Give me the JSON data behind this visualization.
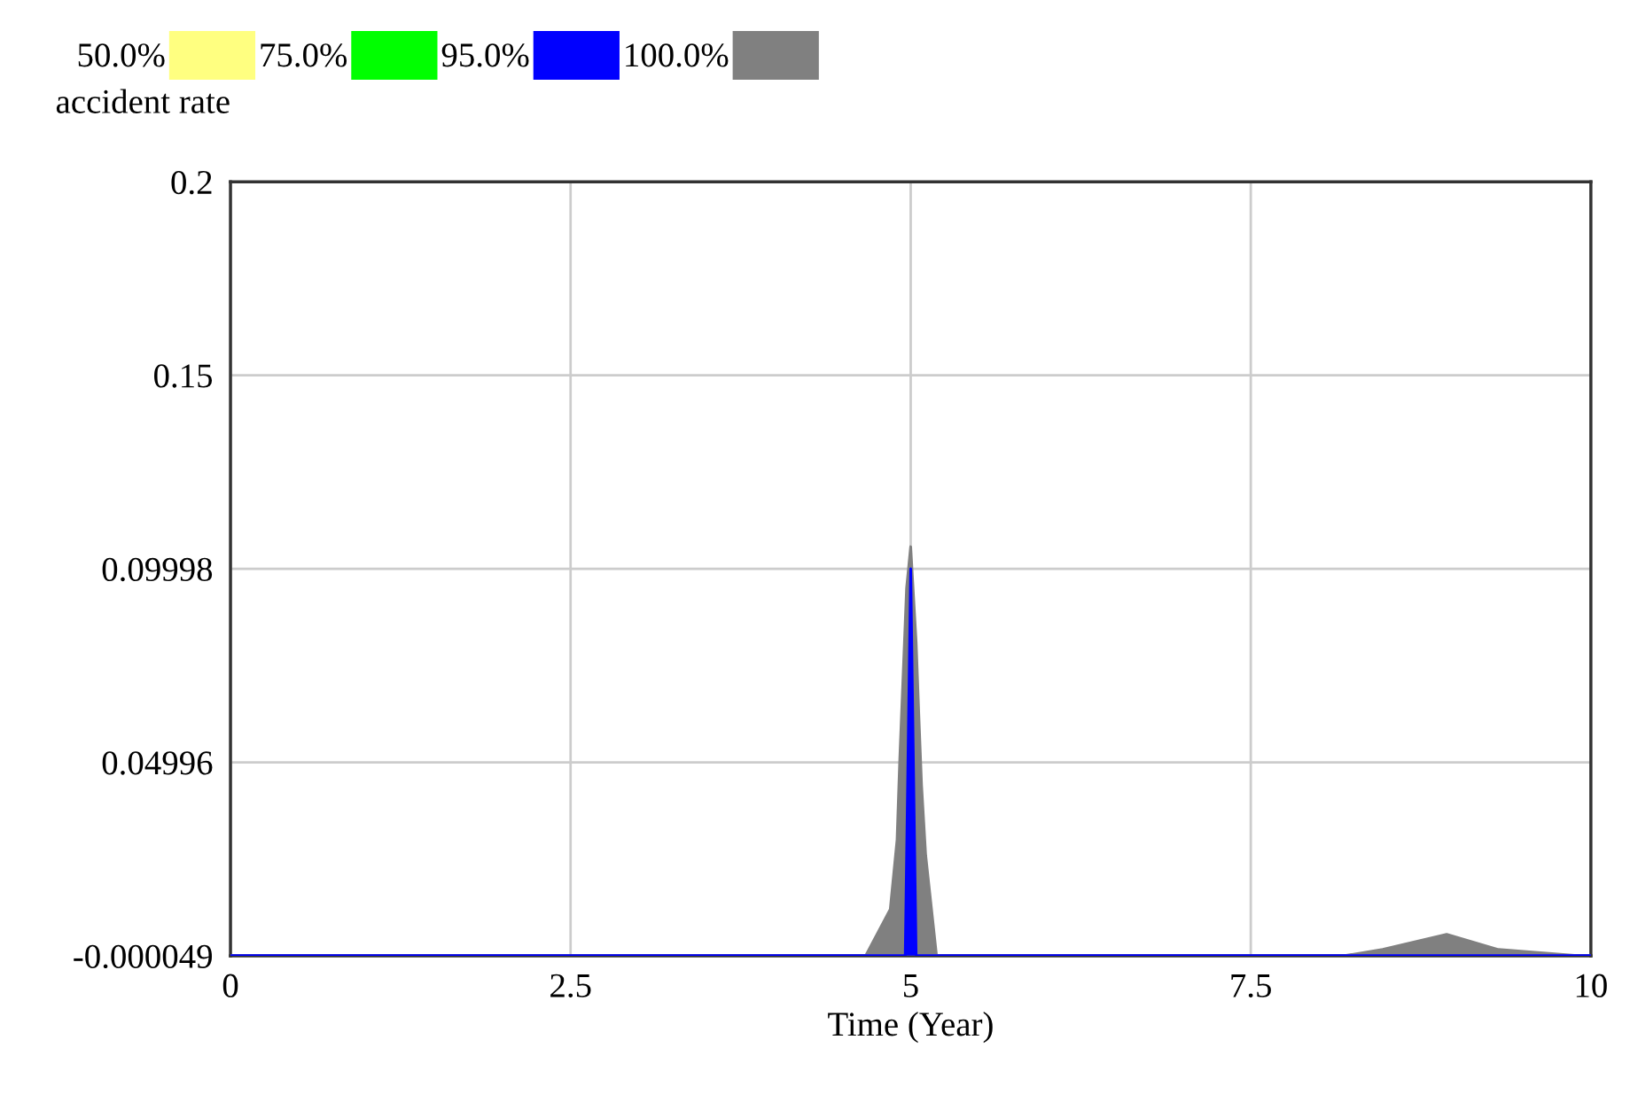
{
  "chart_data": {
    "type": "area",
    "xlabel": "Time (Year)",
    "ylabel": "accident rate",
    "xlim": [
      0,
      10
    ],
    "xticks": [
      0,
      2.5,
      5,
      7.5,
      10
    ],
    "ylim": [
      -4.9e-05,
      0.2
    ],
    "yticks": [
      {
        "value": -4.9e-05,
        "label": "-0.000049"
      },
      0.04996,
      0.09998,
      0.15,
      0.2
    ],
    "grid": true,
    "legend": "top left",
    "series": [
      {
        "name": "100.0%",
        "color": "#808080",
        "x": [
          0,
          4.38,
          4.67,
          4.85,
          4.9,
          4.92,
          4.97,
          5.0,
          5.04,
          5.06,
          5.08,
          5.11,
          5.19,
          8.19,
          8.47,
          8.94,
          9.32,
          9.9,
          10
        ],
        "values": [
          0,
          0,
          0,
          0.012,
          0.03,
          0.0508,
          0.095,
          0.1057,
          0.081,
          0.062,
          0.044,
          0.026,
          0,
          0,
          0.0016,
          0.0055,
          0.0016,
          0,
          0
        ]
      },
      {
        "name": "95.0%",
        "color": "#0000ff",
        "x": [
          0,
          4.96,
          5.0,
          5.04,
          10
        ],
        "values": [
          0,
          0,
          0.1,
          0,
          0
        ]
      },
      {
        "name": "75.0%",
        "color": "#00ff00",
        "values": [
          null
        ]
      },
      {
        "name": "50.0%",
        "color": "#ffff80",
        "values": [
          null
        ]
      }
    ]
  }
}
